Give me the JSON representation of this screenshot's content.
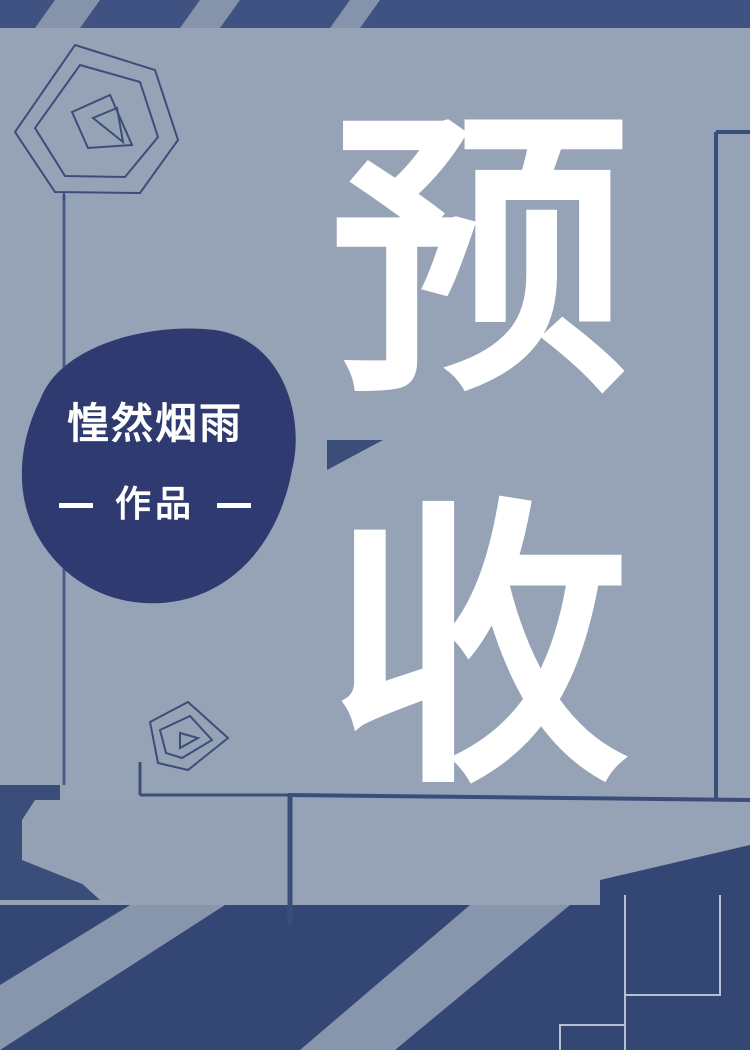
{
  "cover": {
    "title_char_1": "预",
    "title_char_2": "收",
    "author": "惶然烟雨",
    "works_label": "作品"
  },
  "colors": {
    "background": "#96a3b6",
    "navy": "#3b4e7a",
    "badge": "#2e3a70",
    "text": "#ffffff"
  }
}
